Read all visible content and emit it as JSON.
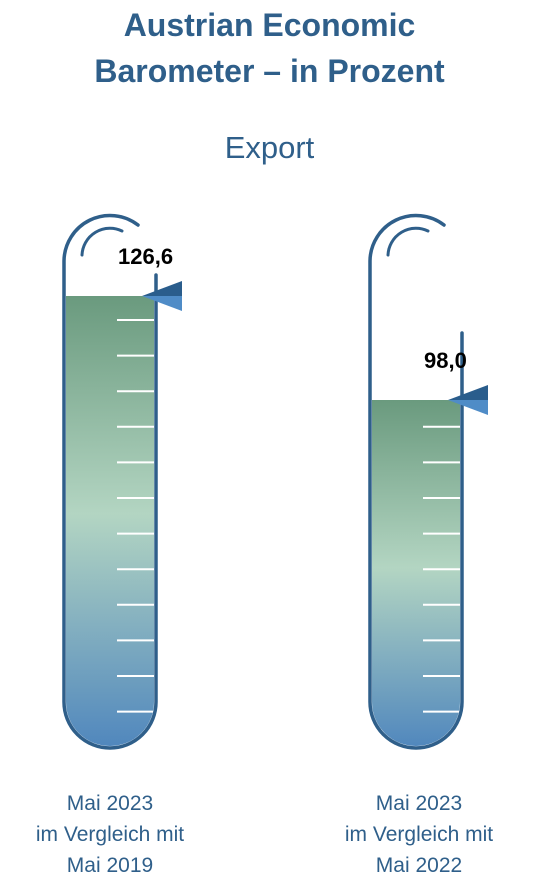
{
  "title_line1": "Austrian Economic",
  "title_line2": "Barometer – in Prozent",
  "subtitle": "Export",
  "colors": {
    "title": "#2f5f8a",
    "tube_outline": "#2f5f8a",
    "fill_top": "#6a9a7e",
    "fill_mid": "#b3d5c2",
    "fill_bottom": "#4f86bd",
    "marker_dark": "#2a5d8c",
    "marker_light": "#4f8cc7"
  },
  "chart_data": [
    {
      "type": "thermometer",
      "value": 126.6,
      "value_label": "126,6",
      "caption": [
        "Mai 2023",
        "im Vergleich mit",
        "Mai 2019"
      ]
    },
    {
      "type": "thermometer",
      "value": 98.0,
      "value_label": "98,0",
      "caption": [
        "Mai 2023",
        "im Vergleich mit",
        "Mai 2022"
      ]
    }
  ]
}
